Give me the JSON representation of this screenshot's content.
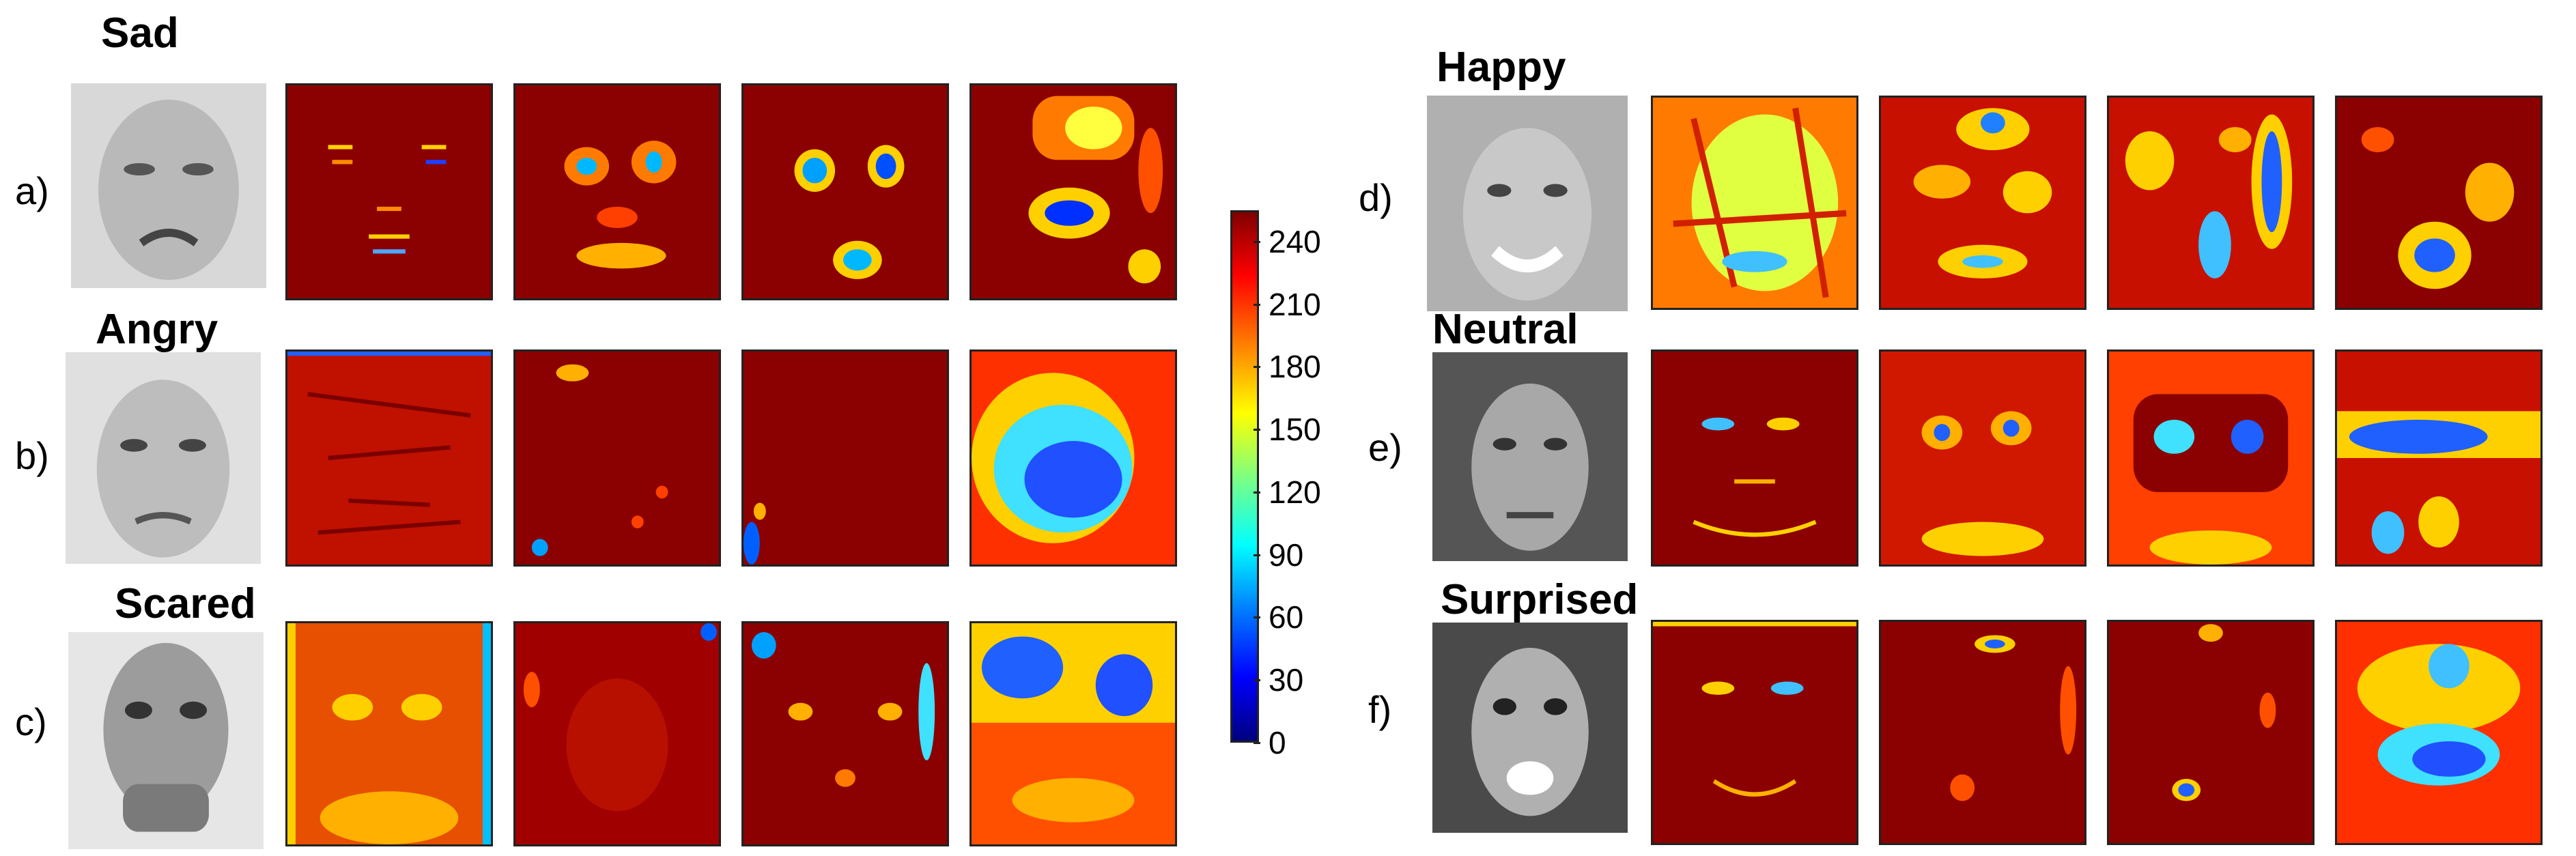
{
  "groups": [
    {
      "row_label": "a)",
      "title": "Sad"
    },
    {
      "row_label": "b)",
      "title": "Angry"
    },
    {
      "row_label": "c)",
      "title": "Scared"
    },
    {
      "row_label": "d)",
      "title": "Happy"
    },
    {
      "row_label": "e)",
      "title": "Neutral"
    },
    {
      "row_label": "f)",
      "title": "Surprised"
    }
  ],
  "colorbar": {
    "ticks": [
      "240",
      "210",
      "180",
      "150",
      "120",
      "90",
      "60",
      "30",
      "0"
    ],
    "min": 0,
    "max": 255,
    "colormap": "jet",
    "colors": [
      "#00007f",
      "#0000ff",
      "#007fff",
      "#00ffff",
      "#7fff7f",
      "#ffff00",
      "#ff7f00",
      "#ff0000",
      "#7f0000"
    ]
  }
}
